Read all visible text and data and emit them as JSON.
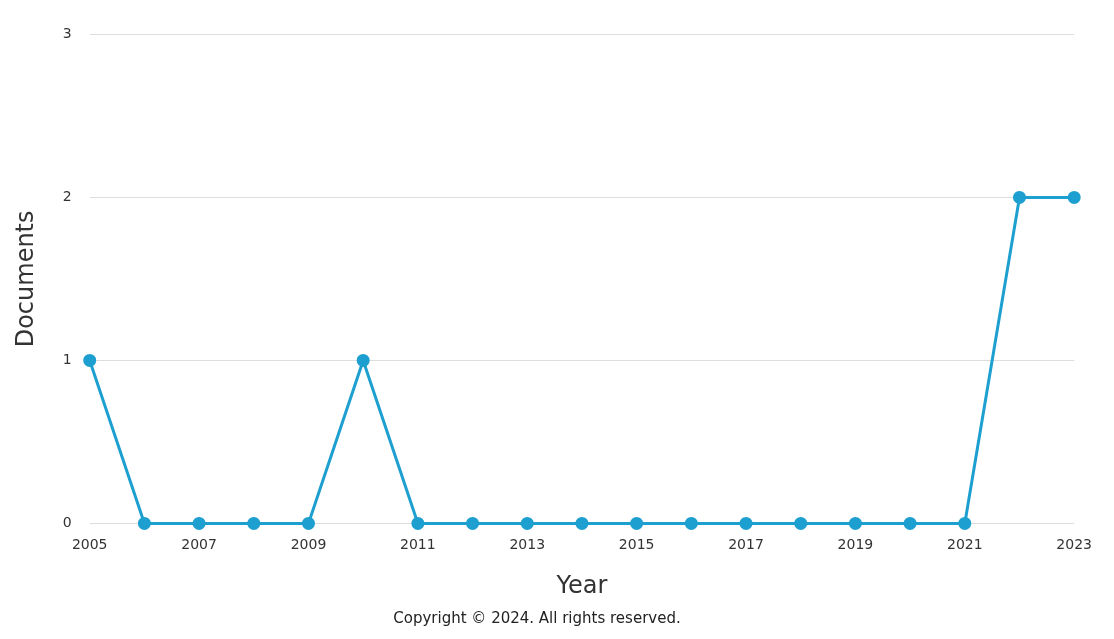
{
  "chart_data": {
    "type": "line",
    "xlabel": "Year",
    "ylabel": "Documents",
    "x": [
      2005,
      2006,
      2007,
      2008,
      2009,
      2010,
      2011,
      2012,
      2013,
      2014,
      2015,
      2016,
      2017,
      2018,
      2019,
      2020,
      2021,
      2022,
      2023
    ],
    "series": [
      {
        "color": "#1d9fd0",
        "values": [
          1,
          0,
          0,
          0,
          0,
          1,
          0,
          0,
          0,
          0,
          0,
          0,
          0,
          0,
          0,
          0,
          0,
          2,
          2
        ]
      }
    ],
    "xlim": [
      2005,
      2023
    ],
    "xticks": [
      2005,
      2007,
      2009,
      2011,
      2013,
      2015,
      2017,
      2019,
      2021,
      2023
    ],
    "ylim": [
      0,
      3
    ],
    "yticks": [
      0,
      1,
      2,
      3
    ],
    "grid": "y",
    "legend": false,
    "marker": "circle",
    "line_style": "solid",
    "annotations": [
      "Copyright © 2024. All rights reserved."
    ]
  }
}
